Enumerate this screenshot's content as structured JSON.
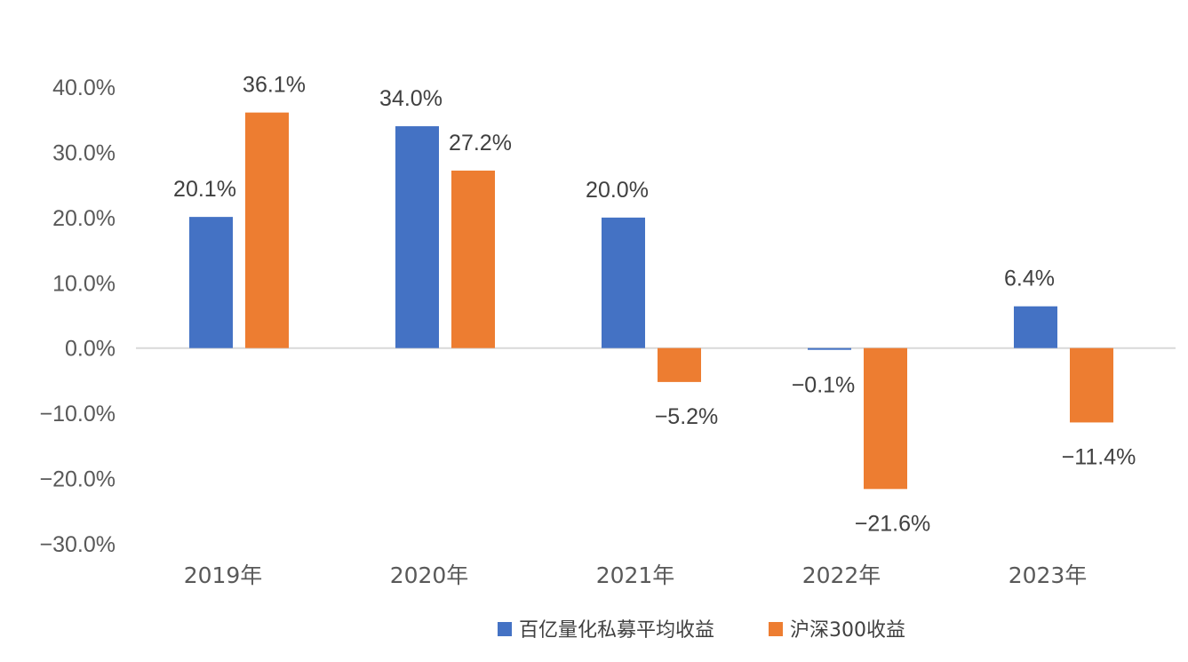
{
  "chart_data": {
    "type": "bar",
    "categories": [
      "2019年",
      "2020年",
      "2021年",
      "2022年",
      "2023年"
    ],
    "series": [
      {
        "name": "百亿量化私募平均收益",
        "color": "#4472C4",
        "values": [
          20.1,
          34.0,
          20.0,
          -0.1,
          6.4
        ],
        "labels": [
          "20.1%",
          "34.0%",
          "20.0%",
          "−0.1%",
          "6.4%"
        ]
      },
      {
        "name": "沪深300收益",
        "color": "#ED7D31",
        "values": [
          36.1,
          27.2,
          -5.2,
          -21.6,
          -11.4
        ],
        "labels": [
          "36.1%",
          "27.2%",
          "−5.2%",
          "−21.6%",
          "−11.4%"
        ]
      }
    ],
    "y_ticks": [
      {
        "value": 40,
        "label": "40.0%"
      },
      {
        "value": 30,
        "label": "30.0%"
      },
      {
        "value": 20,
        "label": "20.0%"
      },
      {
        "value": 10,
        "label": "10.0%"
      },
      {
        "value": 0,
        "label": "0.0%"
      },
      {
        "value": -10,
        "label": "−10.0%"
      },
      {
        "value": -20,
        "label": "−20.0%"
      },
      {
        "value": -30,
        "label": "−30.0%"
      }
    ],
    "ylim": [
      -30,
      40
    ],
    "unit": "%",
    "title": "",
    "xlabel": "",
    "ylabel": "",
    "grid": false,
    "legend_position": "bottom",
    "axis_color": "#D9D9D9"
  }
}
